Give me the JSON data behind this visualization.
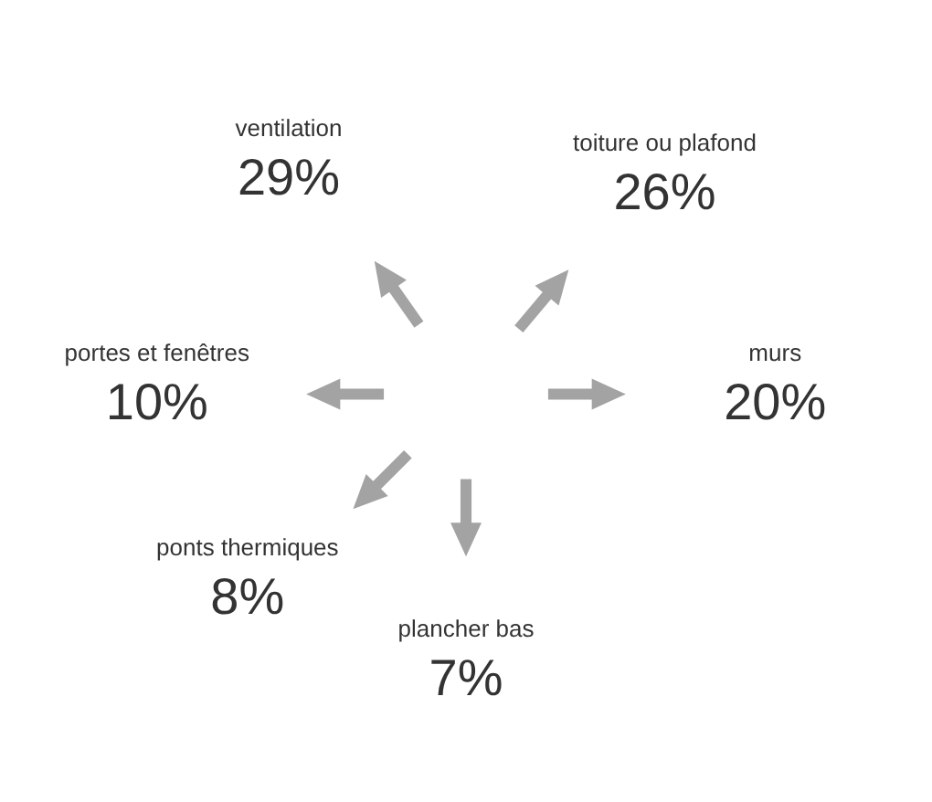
{
  "chart_data": {
    "type": "other",
    "categories": [
      "ventilation",
      "toiture ou plafond",
      "murs",
      "plancher bas",
      "ponts thermiques",
      "portes et fenêtres"
    ],
    "values": [
      29,
      26,
      20,
      7,
      8,
      10
    ],
    "value_labels": [
      "29%",
      "26%",
      "20%",
      "7%",
      "8%",
      "10%"
    ],
    "colors": [
      "#999999",
      "#999999",
      "#999999",
      "#999999",
      "#999999",
      "#999999"
    ]
  }
}
